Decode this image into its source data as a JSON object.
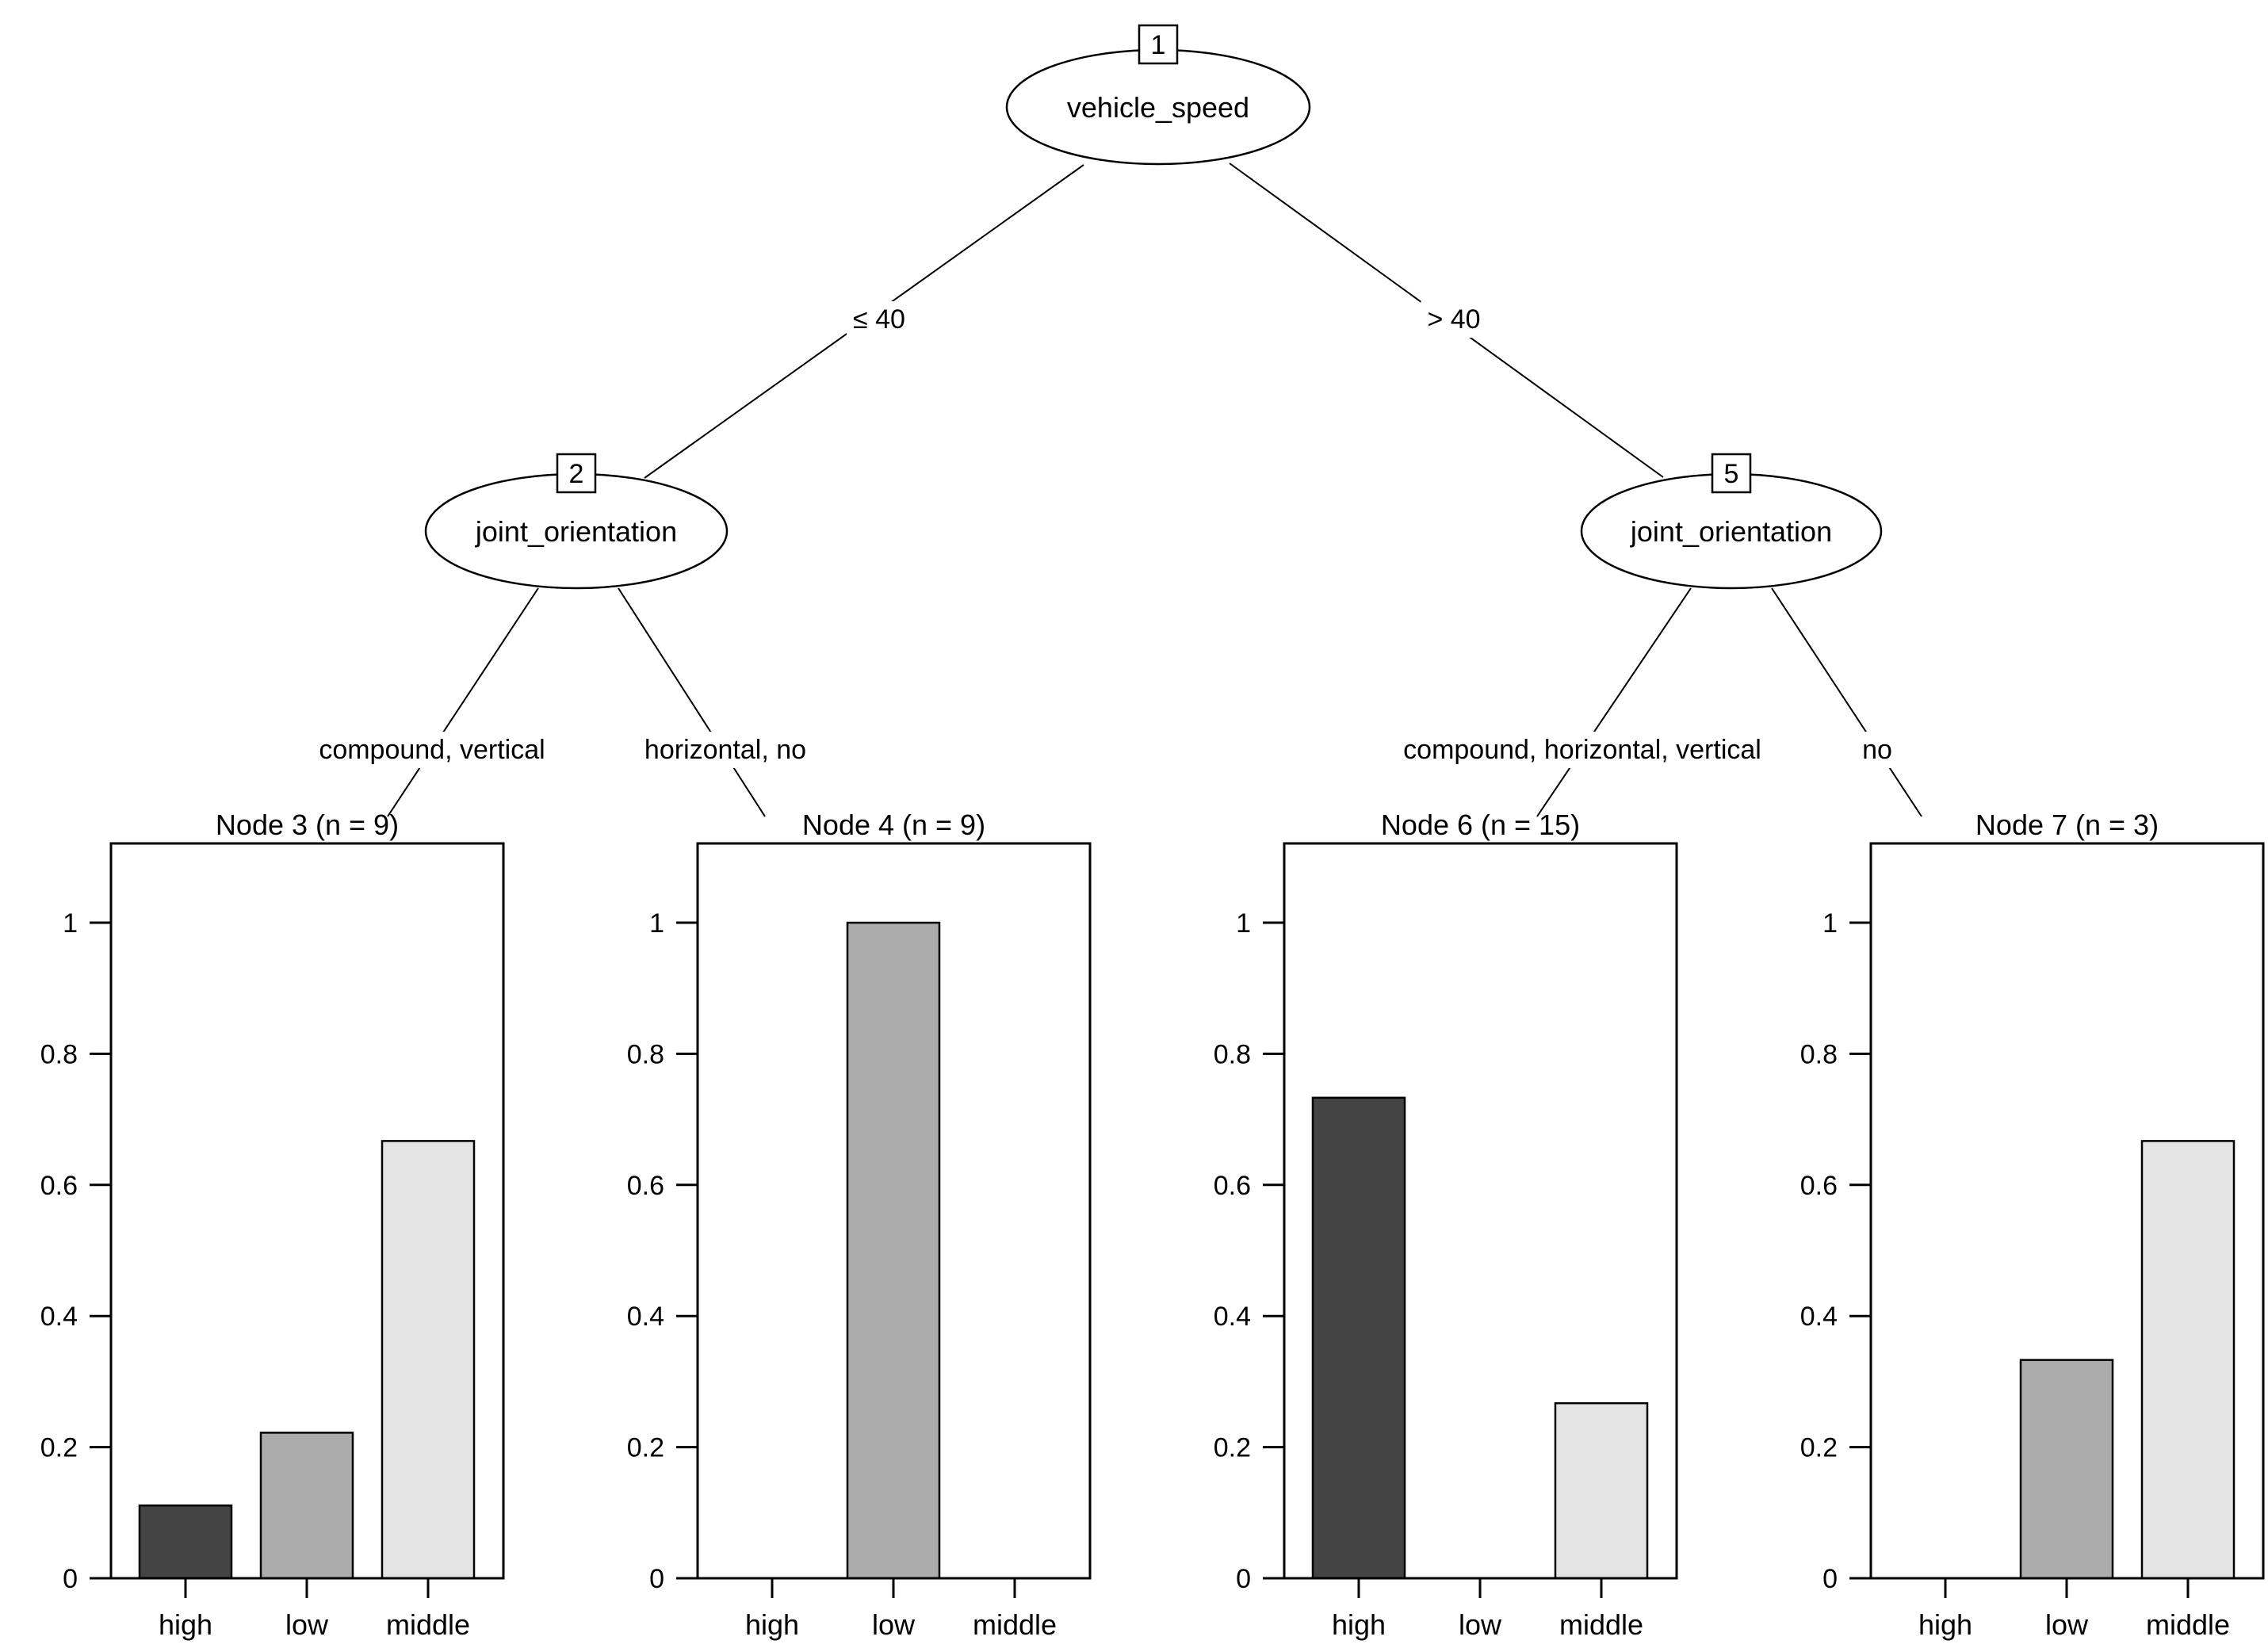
{
  "tree": {
    "nodes": [
      {
        "id": "1",
        "variable": "vehicle_speed"
      },
      {
        "id": "2",
        "variable": "joint_orientation"
      },
      {
        "id": "5",
        "variable": "joint_orientation"
      }
    ],
    "edges": [
      {
        "parent": "1",
        "child": "2",
        "label": "≤ 40"
      },
      {
        "parent": "1",
        "child": "5",
        "label": "> 40"
      },
      {
        "parent": "2",
        "child": "Node 3",
        "label": "compound, vertical"
      },
      {
        "parent": "2",
        "child": "Node 4",
        "label": "horizontal, no"
      },
      {
        "parent": "5",
        "child": "Node 6",
        "label": "compound, horizontal, vertical"
      },
      {
        "parent": "5",
        "child": "Node 7",
        "label": "no"
      }
    ]
  },
  "axis": {
    "categories": [
      "high",
      "low",
      "middle"
    ],
    "yticks": [
      0,
      0.2,
      0.4,
      0.6,
      0.8,
      1
    ],
    "ytick_labels": [
      "0",
      "0.2",
      "0.4",
      "0.6",
      "0.8",
      "1"
    ],
    "ylim": [
      0,
      1.12
    ],
    "grid": "off",
    "legend": "none"
  },
  "chart_data": [
    {
      "type": "bar",
      "title": "Node 3 (n = 9)",
      "n": 9,
      "categories": [
        "high",
        "low",
        "middle"
      ],
      "values": [
        0.111,
        0.222,
        0.667
      ],
      "ylim": [
        0,
        1.12
      ],
      "yticks": [
        0,
        0.2,
        0.4,
        0.6,
        0.8,
        1
      ]
    },
    {
      "type": "bar",
      "title": "Node 4 (n = 9)",
      "n": 9,
      "categories": [
        "high",
        "low",
        "middle"
      ],
      "values": [
        0,
        1,
        0
      ],
      "ylim": [
        0,
        1.12
      ],
      "yticks": [
        0,
        0.2,
        0.4,
        0.6,
        0.8,
        1
      ]
    },
    {
      "type": "bar",
      "title": "Node 6 (n = 15)",
      "n": 15,
      "categories": [
        "high",
        "low",
        "middle"
      ],
      "values": [
        0.733,
        0,
        0.267
      ],
      "ylim": [
        0,
        1.12
      ],
      "yticks": [
        0,
        0.2,
        0.4,
        0.6,
        0.8,
        1
      ]
    },
    {
      "type": "bar",
      "title": "Node 7 (n = 3)",
      "n": 3,
      "categories": [
        "high",
        "low",
        "middle"
      ],
      "values": [
        0,
        0.333,
        0.667
      ],
      "ylim": [
        0,
        1.12
      ],
      "yticks": [
        0,
        0.2,
        0.4,
        0.6,
        0.8,
        1
      ]
    }
  ],
  "colors": {
    "bar_high": "#444444",
    "bar_low": "#ababab",
    "bar_middle": "#e4e4e4",
    "stroke": "#000000",
    "text": "#000000",
    "background": "#ffffff"
  }
}
